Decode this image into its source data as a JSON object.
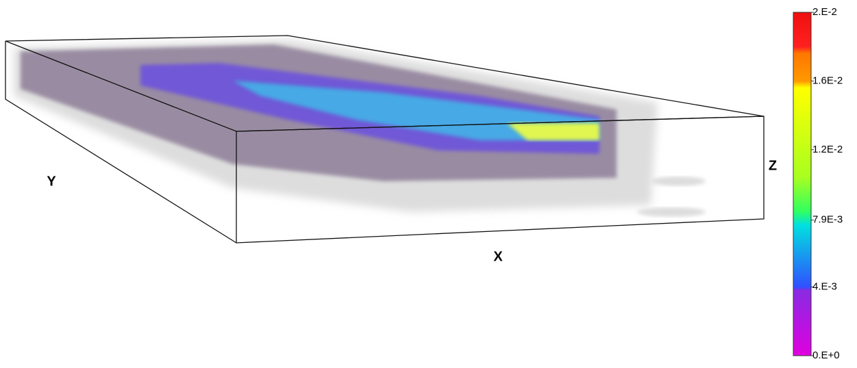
{
  "axes": {
    "x": "X",
    "y": "Y",
    "z": "Z"
  },
  "colorbar": {
    "lim": [
      0,
      0.02
    ],
    "ticks": [
      {
        "value": 0,
        "label": "0.E+0"
      },
      {
        "value": 0.004,
        "label": "4.E-3"
      },
      {
        "value": 0.0079,
        "label": "7.9E-3"
      },
      {
        "value": 0.012,
        "label": "1.2E-2"
      },
      {
        "value": 0.016,
        "label": "1.6E-2"
      },
      {
        "value": 0.02,
        "label": "2.E-2"
      }
    ]
  }
}
